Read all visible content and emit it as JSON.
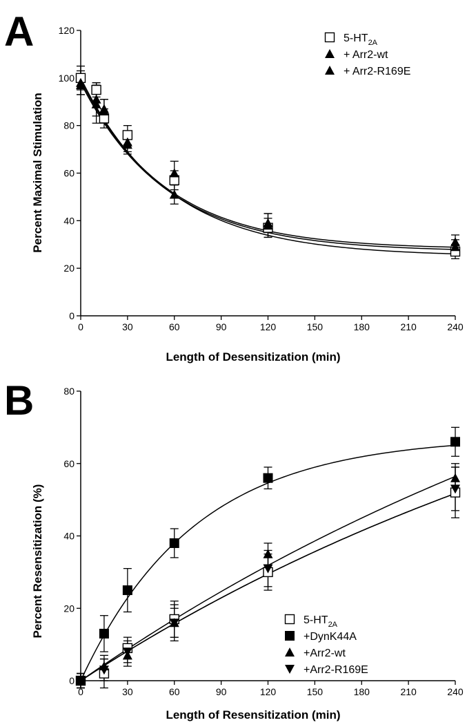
{
  "chart_data": [
    {
      "panel": "A",
      "type": "line",
      "xlabel": "Length of Desensitization (min)",
      "ylabel": "Percent Maximal Stimulation",
      "xlim": [
        0,
        240
      ],
      "ylim": [
        0,
        120
      ],
      "xticks": [
        0,
        30,
        60,
        90,
        120,
        150,
        180,
        210,
        240
      ],
      "yticks": [
        0,
        20,
        40,
        60,
        80,
        100,
        120
      ],
      "grid": false,
      "legend_position": "top-right",
      "series": [
        {
          "name": "5-HT",
          "name_sub": "2A",
          "marker": "square-open",
          "x": [
            0,
            10,
            15,
            30,
            60,
            120,
            240
          ],
          "y": [
            100,
            95,
            83,
            76,
            57,
            37,
            27
          ],
          "err": [
            5,
            3,
            4,
            4,
            4,
            4,
            3
          ],
          "fit": {
            "plateau": 25,
            "span": 75,
            "k": 0.0178
          }
        },
        {
          "name": "+ Arr2-wt",
          "marker": "triangle-up",
          "x": [
            0,
            10,
            15,
            30,
            60,
            120,
            240
          ],
          "y": [
            98,
            89,
            87,
            72,
            51,
            38,
            31
          ],
          "err": [
            5,
            8,
            4,
            4,
            4,
            5,
            3
          ],
          "fit": {
            "plateau": 28,
            "span": 71,
            "k": 0.0185
          }
        },
        {
          "name": "+ Arr2-R169E",
          "marker": "triangle-up",
          "x": [
            0,
            10,
            15,
            30,
            60,
            120,
            240
          ],
          "y": [
            97,
            91,
            86,
            73,
            60,
            39,
            29
          ],
          "err": [
            4,
            7,
            5,
            4,
            5,
            4,
            3
          ],
          "fit": {
            "plateau": 27,
            "span": 71,
            "k": 0.0182
          }
        }
      ]
    },
    {
      "panel": "B",
      "type": "line",
      "xlabel": "Length of Resensitization (min)",
      "ylabel": "Percent Resensitization (%)",
      "xlim": [
        0,
        240
      ],
      "ylim": [
        0,
        80
      ],
      "xticks": [
        0,
        30,
        60,
        90,
        120,
        150,
        180,
        210,
        240
      ],
      "yticks": [
        0,
        20,
        40,
        60,
        80
      ],
      "grid": false,
      "legend_position": "bottom-right",
      "series": [
        {
          "name": "5-HT",
          "name_sub": "2A",
          "marker": "square-open",
          "x": [
            0,
            15,
            30,
            60,
            120,
            240
          ],
          "y": [
            0,
            2,
            9,
            17,
            30,
            52
          ],
          "err": [
            2,
            4,
            3,
            5,
            5,
            7
          ],
          "fit": {
            "plateau": 120,
            "span": 120,
            "k": 0.00235
          }
        },
        {
          "name": "+DynK44A",
          "marker": "square-filled",
          "x": [
            0,
            15,
            30,
            60,
            120,
            240
          ],
          "y": [
            0,
            13,
            25,
            38,
            56,
            66
          ],
          "err": [
            2,
            5,
            6,
            4,
            3,
            4
          ],
          "fit": {
            "plateau": 67.5,
            "span": 67.5,
            "k": 0.0138
          }
        },
        {
          "name": "+Arr2-wt",
          "marker": "triangle-up",
          "x": [
            0,
            15,
            30,
            60,
            120,
            240
          ],
          "y": [
            0,
            4,
            7,
            16,
            35,
            56
          ],
          "err": [
            2,
            3,
            3,
            5,
            3,
            4
          ],
          "fit": {
            "plateau": 140,
            "span": 140,
            "k": 0.00215
          }
        },
        {
          "name": "+Arr2-R169E",
          "marker": "triangle-down",
          "x": [
            0,
            15,
            30,
            60,
            120,
            240
          ],
          "y": [
            0,
            3,
            8,
            16,
            31,
            53
          ],
          "err": [
            2,
            3,
            3,
            4,
            5,
            6
          ],
          "fit": {
            "plateau": 120,
            "span": 120,
            "k": 0.00235
          }
        }
      ]
    }
  ]
}
